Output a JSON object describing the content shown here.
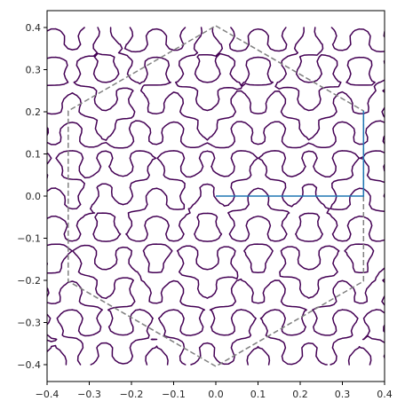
{
  "chart_data": {
    "type": "line",
    "title": "",
    "xlabel": "",
    "ylabel": "",
    "xlim": [
      -0.4,
      0.4
    ],
    "ylim": [
      -0.44,
      0.44
    ],
    "grid": false,
    "legend": "none",
    "x_ticks": [
      -0.4,
      -0.3,
      -0.2,
      -0.1,
      0.0,
      0.1,
      0.2,
      0.3,
      0.4
    ],
    "x_tick_labels": [
      "−0.4",
      "−0.3",
      "−0.2",
      "−0.1",
      "0.0",
      "0.1",
      "0.2",
      "0.3",
      "0.4"
    ],
    "y_ticks": [
      0.4,
      0.3,
      0.2,
      0.1,
      0.0,
      -0.1,
      -0.2,
      -0.3,
      -0.4
    ],
    "y_tick_labels": [
      "0.4",
      "0.3",
      "0.2",
      "0.1",
      "0.0",
      "−0.1",
      "−0.2",
      "−0.3",
      "−0.4"
    ],
    "series": [
      {
        "style": "dashed",
        "color": "#808080",
        "points": [
          [
            0.0,
            0.404
          ],
          [
            0.35,
            0.202
          ],
          [
            0.35,
            -0.202
          ],
          [
            0.0,
            -0.404
          ],
          [
            -0.35,
            -0.202
          ],
          [
            -0.35,
            0.202
          ],
          [
            0.0,
            0.404
          ]
        ]
      },
      {
        "style": "solid",
        "color": "#1f77b4",
        "points": [
          [
            0.0,
            0.0
          ],
          [
            0.35,
            0.0
          ],
          [
            0.35,
            0.202
          ]
        ]
      }
    ],
    "contour": {
      "color": "#440154",
      "xlim": [
        -0.4,
        0.4
      ],
      "ylim": [
        -0.4,
        0.4
      ]
    }
  }
}
